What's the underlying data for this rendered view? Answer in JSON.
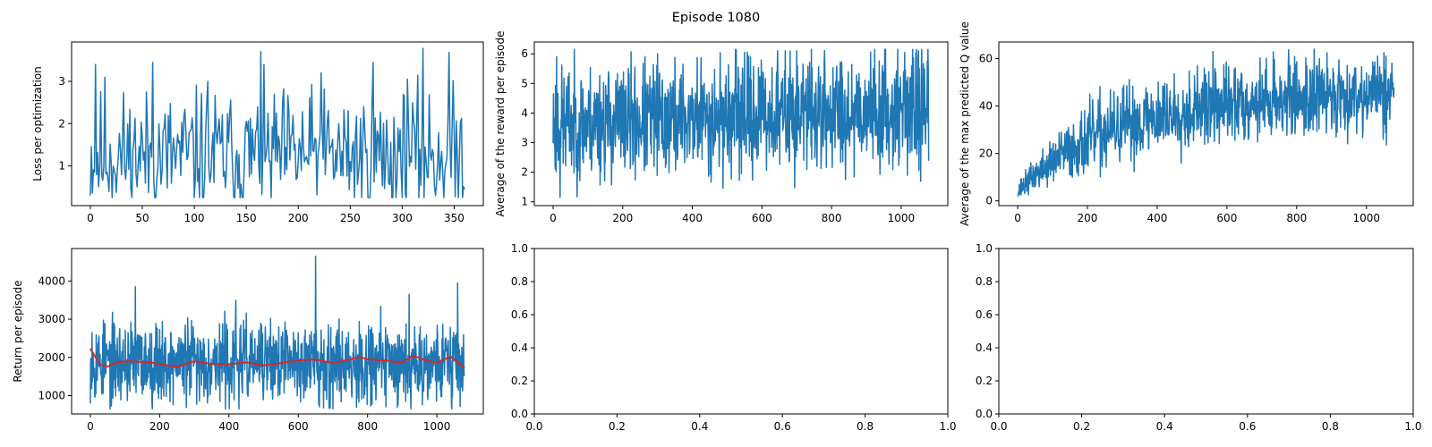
{
  "figure": {
    "suptitle": "Episode 1080"
  },
  "colors": {
    "series": "#1f77b4",
    "smooth": "#d62728",
    "axes": "#000000",
    "background": "#ffffff"
  },
  "chart_data": [
    {
      "id": "loss",
      "type": "line",
      "title": "",
      "xlabel": "",
      "ylabel": "Loss per optimization",
      "xlim": [
        -18,
        378
      ],
      "ylim": [
        0.06,
        3.93
      ],
      "xticks": [
        0,
        50,
        100,
        150,
        200,
        250,
        300,
        350
      ],
      "yticks": [
        1,
        2,
        3
      ],
      "series": [
        {
          "n": 361,
          "x_start": 0,
          "x_step": 1,
          "min": 0.25,
          "max": 3.78,
          "mean": 1.25,
          "noise": 0.75,
          "trend": 0.0,
          "seed": 11,
          "spikes": [
            [
              5,
              3.4
            ],
            [
              14,
              3.1
            ],
            [
              60,
              3.45
            ],
            [
              113,
              3.0
            ],
            [
              164,
              3.7
            ],
            [
              222,
              3.2
            ],
            [
              272,
              3.45
            ],
            [
              305,
              3.05
            ],
            [
              320,
              3.78
            ],
            [
              345,
              3.68
            ]
          ]
        }
      ]
    },
    {
      "id": "reward",
      "type": "line",
      "title": "",
      "xlabel": "",
      "ylabel": "Average of the reward per episode",
      "xlim": [
        -54,
        1134
      ],
      "ylim": [
        0.87,
        6.4
      ],
      "xticks": [
        0,
        200,
        400,
        600,
        800,
        1000
      ],
      "yticks": [
        1,
        2,
        3,
        4,
        5,
        6
      ],
      "series": [
        {
          "n": 1080,
          "x_start": 0,
          "x_step": 1,
          "min": 1.1,
          "max": 6.15,
          "mean": 3.6,
          "noise": 0.95,
          "trend": 0.6,
          "seed": 23,
          "spikes": [
            [
              10,
              5.9
            ],
            [
              20,
              1.15
            ],
            [
              300,
              6.0
            ],
            [
              550,
              6.05
            ],
            [
              700,
              6.1
            ],
            [
              1050,
              6.1
            ]
          ]
        }
      ]
    },
    {
      "id": "qvalue",
      "type": "line",
      "title": "",
      "xlabel": "",
      "ylabel": "Average of the max predicted Q value",
      "xlim": [
        -54,
        1134
      ],
      "ylim": [
        -2,
        67
      ],
      "xticks": [
        0,
        200,
        400,
        600,
        800,
        1000
      ],
      "yticks": [
        0,
        20,
        40,
        60
      ],
      "series": [
        {
          "n": 1080,
          "x_start": 0,
          "x_step": 1,
          "min": 2,
          "max": 64,
          "mean": 40,
          "noise": 8,
          "trend": 0,
          "seed": 37,
          "growth": {
            "start": 4,
            "plateau": 42,
            "tau": 260,
            "late_slope": 0.004
          },
          "spikes": [
            [
              560,
              63
            ],
            [
              850,
              64
            ],
            [
              1050,
              62.5
            ]
          ]
        }
      ]
    },
    {
      "id": "return",
      "type": "line",
      "title": "",
      "xlabel": "",
      "ylabel": "Return per episode",
      "xlim": [
        -54,
        1134
      ],
      "ylim": [
        520,
        4850
      ],
      "xticks": [
        0,
        200,
        400,
        600,
        800,
        1000
      ],
      "yticks": [
        1000,
        2000,
        3000,
        4000
      ],
      "series": [
        {
          "n": 1080,
          "x_start": 0,
          "x_step": 1,
          "min": 650,
          "max": 4650,
          "mean": 1880,
          "noise": 520,
          "trend": 0,
          "seed": 53,
          "color": "#1f77b4",
          "spikes": [
            [
              5,
              2650
            ],
            [
              130,
              3850
            ],
            [
              420,
              3500
            ],
            [
              650,
              4650
            ],
            [
              920,
              3650
            ],
            [
              1060,
              3950
            ]
          ]
        },
        {
          "n": 1080,
          "x_start": 0,
          "x_step": 1,
          "color": "#d62728",
          "smooth": true,
          "points": [
            [
              0,
              2230
            ],
            [
              15,
              2000
            ],
            [
              30,
              1800
            ],
            [
              50,
              1760
            ],
            [
              80,
              1880
            ],
            [
              120,
              1900
            ],
            [
              180,
              1860
            ],
            [
              250,
              1750
            ],
            [
              300,
              1900
            ],
            [
              350,
              1830
            ],
            [
              400,
              1820
            ],
            [
              450,
              1870
            ],
            [
              500,
              1790
            ],
            [
              550,
              1850
            ],
            [
              600,
              1920
            ],
            [
              650,
              1950
            ],
            [
              700,
              1850
            ],
            [
              750,
              1950
            ],
            [
              780,
              2010
            ],
            [
              800,
              1950
            ],
            [
              850,
              1920
            ],
            [
              900,
              1860
            ],
            [
              930,
              2050
            ],
            [
              970,
              1920
            ],
            [
              1000,
              1860
            ],
            [
              1040,
              2020
            ],
            [
              1080,
              1720
            ]
          ]
        }
      ]
    },
    {
      "id": "empty1",
      "type": "line",
      "title": "",
      "xlabel": "",
      "ylabel": "",
      "xlim": [
        0,
        1
      ],
      "ylim": [
        0,
        1
      ],
      "xticks": [
        0.0,
        0.2,
        0.4,
        0.6,
        0.8,
        1.0
      ],
      "yticks": [
        0.0,
        0.2,
        0.4,
        0.6,
        0.8,
        1.0
      ],
      "tick_labels": [
        "0.0",
        "0.2",
        "0.4",
        "0.6",
        "0.8",
        "1.0"
      ],
      "series": []
    },
    {
      "id": "empty2",
      "type": "line",
      "title": "",
      "xlabel": "",
      "ylabel": "",
      "xlim": [
        0,
        1
      ],
      "ylim": [
        0,
        1
      ],
      "xticks": [
        0.0,
        0.2,
        0.4,
        0.6,
        0.8,
        1.0
      ],
      "yticks": [
        0.0,
        0.2,
        0.4,
        0.6,
        0.8,
        1.0
      ],
      "tick_labels": [
        "0.0",
        "0.2",
        "0.4",
        "0.6",
        "0.8",
        "1.0"
      ],
      "series": []
    }
  ]
}
